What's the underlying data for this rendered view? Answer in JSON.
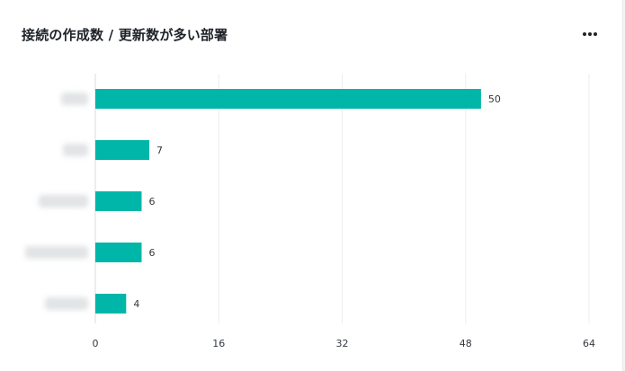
{
  "card": {
    "title": "接続の作成数 / 更新数が多い部署",
    "more_icon": "more-horizontal-icon"
  },
  "chart_data": {
    "type": "bar",
    "orientation": "horizontal",
    "categories": [
      "",
      "",
      "",
      "",
      ""
    ],
    "categories_note_blurred": true,
    "values": [
      50,
      7,
      6,
      6,
      4
    ],
    "xlim": [
      0,
      64
    ],
    "xticks": [
      0,
      16,
      32,
      48,
      64
    ],
    "grid": "vertical",
    "data_labels": true,
    "color": "#00b6a8"
  }
}
